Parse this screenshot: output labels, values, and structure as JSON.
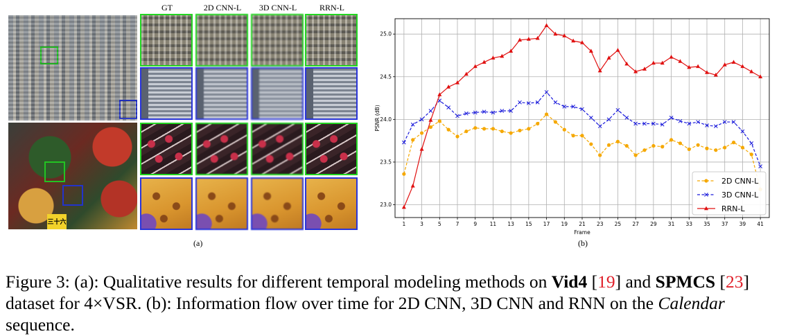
{
  "panel_a": {
    "column_headers": [
      "GT",
      "2D CNN-L",
      "3D CNN-L",
      "RRN-L"
    ],
    "badge_text": "三十六",
    "label": "(a)"
  },
  "panel_b": {
    "label": "(b)"
  },
  "chart_data": {
    "type": "line",
    "title": "",
    "xlabel": "Frame",
    "ylabel": "PSNR (dB)",
    "xlim": [
      0,
      42
    ],
    "ylim": [
      22.85,
      25.18
    ],
    "xticks": [
      1,
      3,
      5,
      7,
      9,
      11,
      13,
      15,
      17,
      19,
      21,
      23,
      25,
      27,
      29,
      31,
      33,
      35,
      37,
      39,
      41
    ],
    "yticks": [
      23.0,
      23.5,
      24.0,
      24.5,
      25.0
    ],
    "grid": true,
    "legend_position": "lower-right",
    "series": [
      {
        "name": "2D CNN-L",
        "color": "#f5a800",
        "linestyle": "dashed",
        "marker": "circle",
        "x": [
          1,
          2,
          3,
          4,
          5,
          6,
          7,
          8,
          9,
          10,
          11,
          12,
          13,
          14,
          15,
          16,
          17,
          18,
          19,
          20,
          21,
          22,
          23,
          24,
          25,
          26,
          27,
          28,
          29,
          30,
          31,
          32,
          33,
          34,
          35,
          36,
          37,
          38,
          39,
          40,
          41
        ],
        "values": [
          23.36,
          23.76,
          23.84,
          23.91,
          23.98,
          23.88,
          23.8,
          23.86,
          23.9,
          23.89,
          23.89,
          23.86,
          23.84,
          23.87,
          23.89,
          23.95,
          24.06,
          23.97,
          23.88,
          23.81,
          23.81,
          23.71,
          23.58,
          23.7,
          23.74,
          23.69,
          23.58,
          23.64,
          23.69,
          23.68,
          23.76,
          23.72,
          23.65,
          23.7,
          23.66,
          23.64,
          23.67,
          23.73,
          23.67,
          23.59,
          23.18
        ]
      },
      {
        "name": "3D CNN-L",
        "color": "#1a1adb",
        "linestyle": "dashed",
        "marker": "x",
        "x": [
          1,
          2,
          3,
          4,
          5,
          6,
          7,
          8,
          9,
          10,
          11,
          12,
          13,
          14,
          15,
          16,
          17,
          18,
          19,
          20,
          21,
          22,
          23,
          24,
          25,
          26,
          27,
          28,
          29,
          30,
          31,
          32,
          33,
          34,
          35,
          36,
          37,
          38,
          39,
          40,
          41
        ],
        "values": [
          23.73,
          23.94,
          24.0,
          24.1,
          24.22,
          24.14,
          24.04,
          24.07,
          24.08,
          24.09,
          24.08,
          24.1,
          24.1,
          24.2,
          24.19,
          24.2,
          24.32,
          24.2,
          24.15,
          24.15,
          24.12,
          24.02,
          23.92,
          24.0,
          24.11,
          24.02,
          23.95,
          23.95,
          23.95,
          23.94,
          24.02,
          23.98,
          23.95,
          23.97,
          23.93,
          23.92,
          23.97,
          23.97,
          23.86,
          23.72,
          23.45
        ]
      },
      {
        "name": "RRN-L",
        "color": "#e01010",
        "linestyle": "solid",
        "marker": "triangle",
        "x": [
          1,
          2,
          3,
          4,
          5,
          6,
          7,
          8,
          9,
          10,
          11,
          12,
          13,
          14,
          15,
          16,
          17,
          18,
          19,
          20,
          21,
          22,
          23,
          24,
          25,
          26,
          27,
          28,
          29,
          30,
          31,
          32,
          33,
          34,
          35,
          36,
          37,
          38,
          39,
          40,
          41
        ],
        "values": [
          22.97,
          23.22,
          23.65,
          23.99,
          24.29,
          24.38,
          24.43,
          24.53,
          24.62,
          24.67,
          24.72,
          24.74,
          24.8,
          24.93,
          24.94,
          24.95,
          25.1,
          25.0,
          24.98,
          24.92,
          24.9,
          24.8,
          24.57,
          24.72,
          24.81,
          24.65,
          24.56,
          24.59,
          24.66,
          24.66,
          24.73,
          24.68,
          24.61,
          24.62,
          24.55,
          24.52,
          24.64,
          24.67,
          24.62,
          24.56,
          24.5
        ]
      }
    ]
  },
  "caption": {
    "prefix": "Figure 3:  (a):  Qualitative results for different temporal modeling methods on ",
    "dataset1": "Vid4",
    "ref1": "19",
    "mid": " and ",
    "dataset2": "SPMCS",
    "ref2": "23",
    "mid2": " dataset for 4×VSR. (b): Information flow over time for 2D CNN, 3D CNN and RNN on the ",
    "sequence": "Calendar",
    "suffix": " sequence."
  }
}
